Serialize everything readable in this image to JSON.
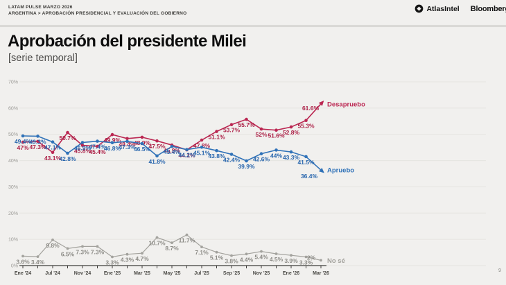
{
  "header": {
    "kicker_line1": "LATAM PULSE MARZO 2026",
    "breadcrumb": "ARGENTINA > APROBACIÓN PRESIDENCIAL Y EVALUACIÓN DEL GOBIERNO",
    "brands": {
      "atlasintel": "AtlasIntel",
      "bloomberg": "Bloomberg"
    }
  },
  "title": "Aprobación del presidente Milei",
  "subtitle": "[serie temporal]",
  "page_number": "9",
  "chart_data": {
    "type": "line",
    "title": "Aprobación del presidente Milei [serie temporal]",
    "y_ticks": [
      0,
      10,
      20,
      30,
      40,
      50,
      60,
      70
    ],
    "ylim": [
      0,
      70
    ],
    "y_axis_format": "percent",
    "grid": true,
    "legend_position": "right-of-last-point",
    "x_tick_labels": [
      {
        "index": 0,
        "label": "Ene '24"
      },
      {
        "index": 2,
        "label": "Jul '24"
      },
      {
        "index": 4,
        "label": "Nov '24"
      },
      {
        "index": 6,
        "label": "Ene '25"
      },
      {
        "index": 8,
        "label": "Mar '25"
      },
      {
        "index": 10,
        "label": "May '25"
      },
      {
        "index": 12,
        "label": "Jul '25"
      },
      {
        "index": 14,
        "label": "Sep '25"
      },
      {
        "index": 16,
        "label": "Nov '25"
      },
      {
        "index": 18,
        "label": "Ene '26"
      },
      {
        "index": 20,
        "label": "Mar '26"
      }
    ],
    "series": [
      {
        "name": "Desapruebo",
        "color": "#bb2752",
        "label_color": "#ac1f46",
        "arrow_end": true,
        "last_label_offset": [
          -15,
          9
        ],
        "values": [
          47,
          47.3,
          43.1,
          50.7,
          45.8,
          45.4,
          49.9,
          48.4,
          48.9,
          47.5,
          45.9,
          44.1,
          47.8,
          51.1,
          53.7,
          55.7,
          52,
          51.6,
          52.8,
          55.3,
          61.6
        ]
      },
      {
        "name": "Apruebo",
        "color": "#3072b8",
        "label_color": "#2765ad",
        "arrow_end": true,
        "last_label_offset": [
          -17,
          12
        ],
        "values": [
          49.4,
          49.3,
          47.1,
          42.8,
          46.9,
          47.4,
          46.8,
          47.3,
          46.5,
          41.8,
          45.4,
          44.2,
          45.1,
          43.8,
          42.4,
          39.9,
          42.6,
          44,
          43.3,
          41.5,
          36.4
        ]
      },
      {
        "name": "No sé",
        "color": "#a3a29d",
        "label_color": "#8c8b86",
        "arrow_end": false,
        "last_label_offset": [
          -14,
          -1
        ],
        "values": [
          3.6,
          3.4,
          9.8,
          6.5,
          7.3,
          7.3,
          3.3,
          4.3,
          4.7,
          10.7,
          8.7,
          11.7,
          7.1,
          5.1,
          3.8,
          4.4,
          5.4,
          4.5,
          3.9,
          3.3,
          2
        ]
      }
    ]
  }
}
